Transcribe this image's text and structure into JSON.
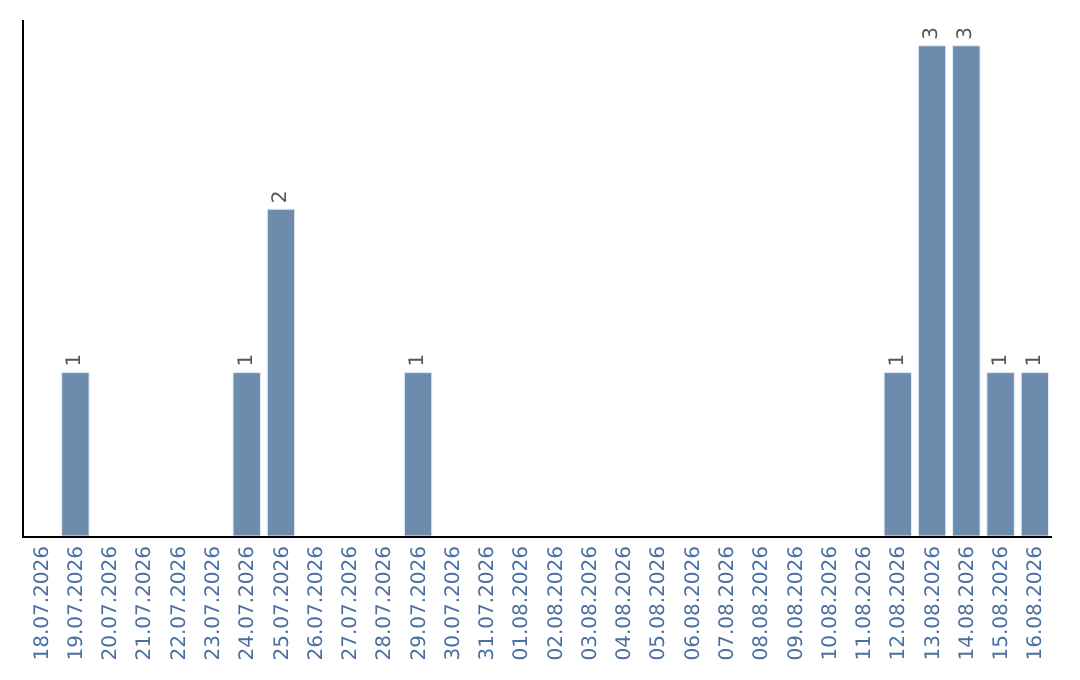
{
  "chart_data": {
    "type": "bar",
    "categories": [
      "18.07.2026",
      "19.07.2026",
      "20.07.2026",
      "21.07.2026",
      "22.07.2026",
      "23.07.2026",
      "24.07.2026",
      "25.07.2026",
      "26.07.2026",
      "27.07.2026",
      "28.07.2026",
      "29.07.2026",
      "30.07.2026",
      "31.07.2026",
      "01.08.2026",
      "02.08.2026",
      "03.08.2026",
      "04.08.2026",
      "05.08.2026",
      "06.08.2026",
      "07.08.2026",
      "08.08.2026",
      "09.08.2026",
      "10.08.2026",
      "11.08.2026",
      "12.08.2026",
      "13.08.2026",
      "14.08.2026",
      "15.08.2026",
      "16.08.2026"
    ],
    "values": [
      null,
      1,
      null,
      null,
      null,
      null,
      1,
      2,
      null,
      null,
      null,
      1,
      null,
      null,
      null,
      null,
      null,
      null,
      null,
      null,
      null,
      null,
      null,
      null,
      null,
      1,
      3,
      3,
      1,
      1
    ],
    "value_labels": [
      null,
      "1",
      null,
      null,
      null,
      null,
      "1",
      "2",
      null,
      null,
      null,
      "1",
      null,
      null,
      null,
      null,
      null,
      null,
      null,
      null,
      null,
      null,
      null,
      null,
      null,
      "1",
      "3",
      "3",
      "1",
      "1"
    ],
    "color": "#6d8cad",
    "tick_labels": "x"
  }
}
